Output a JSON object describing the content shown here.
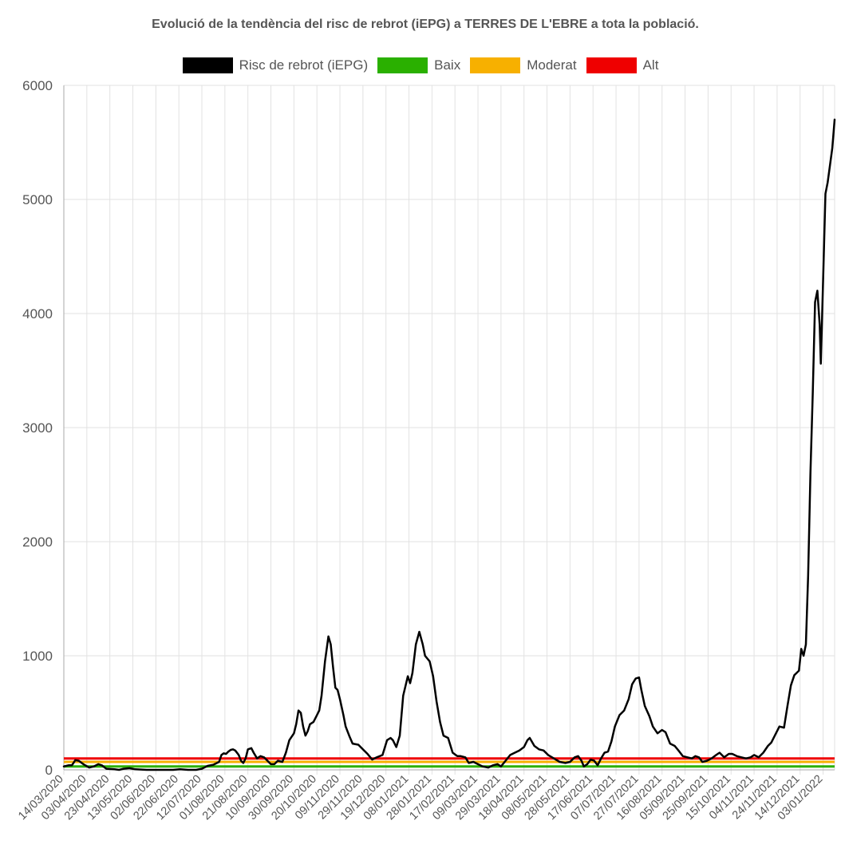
{
  "chart_data": {
    "type": "line",
    "title": "Evolució de la tendència del risc de rebrot (iEPG) a TERRES DE L'EBRE a tota la població.",
    "xlabel": "",
    "ylabel": "",
    "ylim": [
      0,
      6000
    ],
    "y_ticks": [
      "0",
      "1000",
      "2000",
      "3000",
      "4000",
      "5000",
      "6000"
    ],
    "x_start": "2020-03-14",
    "x_end": "2022-01-13",
    "x_tick_labels": [
      "14/03/2020",
      "03/04/2020",
      "23/04/2020",
      "13/05/2020",
      "02/06/2020",
      "22/06/2020",
      "12/07/2020",
      "01/08/2020",
      "21/08/2020",
      "10/09/2020",
      "30/09/2020",
      "20/10/2020",
      "09/11/2020",
      "29/11/2020",
      "19/12/2020",
      "08/01/2021",
      "28/01/2021",
      "17/02/2021",
      "09/03/2021",
      "29/03/2021",
      "18/04/2021",
      "08/05/2021",
      "28/05/2021",
      "17/06/2021",
      "07/07/2021",
      "27/07/2021",
      "16/08/2021",
      "05/09/2021",
      "25/09/2021",
      "15/10/2021",
      "04/11/2021",
      "24/11/2021",
      "14/12/2021",
      "03/01/2022"
    ],
    "grid": true,
    "legend_position": "top",
    "series": [
      {
        "name": "Risc de rebrot (iEPG)",
        "color": "#000000",
        "points": [
          [
            "2020-03-14",
            30
          ],
          [
            "2020-03-18",
            40
          ],
          [
            "2020-03-21",
            40
          ],
          [
            "2020-03-24",
            85
          ],
          [
            "2020-03-27",
            80
          ],
          [
            "2020-03-31",
            50
          ],
          [
            "2020-04-05",
            20
          ],
          [
            "2020-04-09",
            30
          ],
          [
            "2020-04-13",
            50
          ],
          [
            "2020-04-16",
            40
          ],
          [
            "2020-04-20",
            10
          ],
          [
            "2020-04-27",
            5
          ],
          [
            "2020-05-01",
            0
          ],
          [
            "2020-05-05",
            10
          ],
          [
            "2020-05-10",
            15
          ],
          [
            "2020-05-15",
            5
          ],
          [
            "2020-05-25",
            0
          ],
          [
            "2020-06-05",
            0
          ],
          [
            "2020-06-12",
            0
          ],
          [
            "2020-06-17",
            0
          ],
          [
            "2020-06-23",
            5
          ],
          [
            "2020-06-30",
            0
          ],
          [
            "2020-07-07",
            0
          ],
          [
            "2020-07-12",
            10
          ],
          [
            "2020-07-17",
            35
          ],
          [
            "2020-07-22",
            45
          ],
          [
            "2020-07-27",
            70
          ],
          [
            "2020-07-29",
            130
          ],
          [
            "2020-07-31",
            145
          ],
          [
            "2020-08-02",
            140
          ],
          [
            "2020-08-04",
            160
          ],
          [
            "2020-08-06",
            175
          ],
          [
            "2020-08-08",
            180
          ],
          [
            "2020-08-10",
            170
          ],
          [
            "2020-08-13",
            130
          ],
          [
            "2020-08-15",
            80
          ],
          [
            "2020-08-17",
            60
          ],
          [
            "2020-08-19",
            100
          ],
          [
            "2020-08-21",
            180
          ],
          [
            "2020-08-24",
            190
          ],
          [
            "2020-08-26",
            150
          ],
          [
            "2020-08-29",
            100
          ],
          [
            "2020-09-01",
            120
          ],
          [
            "2020-09-04",
            110
          ],
          [
            "2020-09-08",
            70
          ],
          [
            "2020-09-10",
            50
          ],
          [
            "2020-09-13",
            50
          ],
          [
            "2020-09-16",
            80
          ],
          [
            "2020-09-20",
            70
          ],
          [
            "2020-09-23",
            150
          ],
          [
            "2020-09-26",
            260
          ],
          [
            "2020-09-30",
            320
          ],
          [
            "2020-10-02",
            400
          ],
          [
            "2020-10-04",
            520
          ],
          [
            "2020-10-06",
            500
          ],
          [
            "2020-10-08",
            380
          ],
          [
            "2020-10-10",
            300
          ],
          [
            "2020-10-12",
            340
          ],
          [
            "2020-10-14",
            400
          ],
          [
            "2020-10-17",
            420
          ],
          [
            "2020-10-20",
            480
          ],
          [
            "2020-10-22",
            520
          ],
          [
            "2020-10-24",
            650
          ],
          [
            "2020-10-27",
            950
          ],
          [
            "2020-10-30",
            1170
          ],
          [
            "2020-11-01",
            1100
          ],
          [
            "2020-11-03",
            900
          ],
          [
            "2020-11-05",
            720
          ],
          [
            "2020-11-07",
            700
          ],
          [
            "2020-11-09",
            620
          ],
          [
            "2020-11-12",
            480
          ],
          [
            "2020-11-14",
            380
          ],
          [
            "2020-11-17",
            300
          ],
          [
            "2020-11-20",
            230
          ],
          [
            "2020-11-25",
            220
          ],
          [
            "2020-11-30",
            170
          ],
          [
            "2020-12-03",
            140
          ],
          [
            "2020-12-07",
            90
          ],
          [
            "2020-12-11",
            110
          ],
          [
            "2020-12-16",
            130
          ],
          [
            "2020-12-20",
            260
          ],
          [
            "2020-12-23",
            280
          ],
          [
            "2020-12-25",
            260
          ],
          [
            "2020-12-28",
            200
          ],
          [
            "2020-12-31",
            300
          ],
          [
            "2021-01-03",
            650
          ],
          [
            "2021-01-07",
            820
          ],
          [
            "2021-01-09",
            760
          ],
          [
            "2021-01-11",
            850
          ],
          [
            "2021-01-14",
            1100
          ],
          [
            "2021-01-17",
            1210
          ],
          [
            "2021-01-20",
            1100
          ],
          [
            "2021-01-22",
            1000
          ],
          [
            "2021-01-26",
            950
          ],
          [
            "2021-01-29",
            820
          ],
          [
            "2021-02-01",
            600
          ],
          [
            "2021-02-04",
            420
          ],
          [
            "2021-02-07",
            300
          ],
          [
            "2021-02-11",
            280
          ],
          [
            "2021-02-15",
            150
          ],
          [
            "2021-02-19",
            120
          ],
          [
            "2021-02-22",
            120
          ],
          [
            "2021-02-26",
            110
          ],
          [
            "2021-03-01",
            60
          ],
          [
            "2021-03-05",
            70
          ],
          [
            "2021-03-09",
            50
          ],
          [
            "2021-03-13",
            30
          ],
          [
            "2021-03-18",
            20
          ],
          [
            "2021-03-22",
            40
          ],
          [
            "2021-03-26",
            50
          ],
          [
            "2021-03-29",
            30
          ],
          [
            "2021-04-02",
            80
          ],
          [
            "2021-04-06",
            130
          ],
          [
            "2021-04-10",
            150
          ],
          [
            "2021-04-14",
            170
          ],
          [
            "2021-04-18",
            200
          ],
          [
            "2021-04-21",
            260
          ],
          [
            "2021-04-23",
            280
          ],
          [
            "2021-04-27",
            210
          ],
          [
            "2021-05-01",
            180
          ],
          [
            "2021-05-05",
            170
          ],
          [
            "2021-05-09",
            130
          ],
          [
            "2021-05-14",
            100
          ],
          [
            "2021-05-19",
            70
          ],
          [
            "2021-05-24",
            60
          ],
          [
            "2021-05-28",
            70
          ],
          [
            "2021-06-01",
            110
          ],
          [
            "2021-06-04",
            120
          ],
          [
            "2021-06-07",
            80
          ],
          [
            "2021-06-09",
            30
          ],
          [
            "2021-06-12",
            50
          ],
          [
            "2021-06-15",
            90
          ],
          [
            "2021-06-18",
            80
          ],
          [
            "2021-06-21",
            40
          ],
          [
            "2021-06-24",
            100
          ],
          [
            "2021-06-27",
            150
          ],
          [
            "2021-06-30",
            160
          ],
          [
            "2021-07-03",
            250
          ],
          [
            "2021-07-06",
            380
          ],
          [
            "2021-07-10",
            480
          ],
          [
            "2021-07-14",
            520
          ],
          [
            "2021-07-18",
            620
          ],
          [
            "2021-07-21",
            750
          ],
          [
            "2021-07-24",
            800
          ],
          [
            "2021-07-27",
            810
          ],
          [
            "2021-07-29",
            700
          ],
          [
            "2021-08-01",
            560
          ],
          [
            "2021-08-05",
            470
          ],
          [
            "2021-08-08",
            380
          ],
          [
            "2021-08-12",
            320
          ],
          [
            "2021-08-16",
            350
          ],
          [
            "2021-08-19",
            330
          ],
          [
            "2021-08-23",
            230
          ],
          [
            "2021-08-27",
            210
          ],
          [
            "2021-08-31",
            160
          ],
          [
            "2021-09-03",
            120
          ],
          [
            "2021-09-07",
            110
          ],
          [
            "2021-09-11",
            100
          ],
          [
            "2021-09-14",
            120
          ],
          [
            "2021-09-17",
            110
          ],
          [
            "2021-09-20",
            70
          ],
          [
            "2021-09-24",
            80
          ],
          [
            "2021-09-28",
            100
          ],
          [
            "2021-10-02",
            130
          ],
          [
            "2021-10-05",
            150
          ],
          [
            "2021-10-09",
            110
          ],
          [
            "2021-10-13",
            140
          ],
          [
            "2021-10-16",
            140
          ],
          [
            "2021-10-20",
            120
          ],
          [
            "2021-10-24",
            110
          ],
          [
            "2021-10-28",
            100
          ],
          [
            "2021-11-01",
            110
          ],
          [
            "2021-11-04",
            130
          ],
          [
            "2021-11-08",
            110
          ],
          [
            "2021-11-12",
            150
          ],
          [
            "2021-11-16",
            210
          ],
          [
            "2021-11-19",
            240
          ],
          [
            "2021-11-23",
            320
          ],
          [
            "2021-11-26",
            380
          ],
          [
            "2021-11-30",
            370
          ],
          [
            "2021-12-03",
            560
          ],
          [
            "2021-12-06",
            740
          ],
          [
            "2021-12-09",
            830
          ],
          [
            "2021-12-11",
            850
          ],
          [
            "2021-12-13",
            870
          ],
          [
            "2021-12-15",
            1060
          ],
          [
            "2021-12-17",
            1000
          ],
          [
            "2021-12-19",
            1100
          ],
          [
            "2021-12-21",
            1700
          ],
          [
            "2021-12-23",
            2600
          ],
          [
            "2021-12-25",
            3300
          ],
          [
            "2021-12-27",
            4100
          ],
          [
            "2021-12-29",
            4200
          ],
          [
            "2021-12-31",
            3900
          ],
          [
            "2022-01-01",
            3560
          ],
          [
            "2022-01-03",
            4300
          ],
          [
            "2022-01-05",
            5050
          ],
          [
            "2022-01-07",
            5150
          ],
          [
            "2022-01-09",
            5300
          ],
          [
            "2022-01-11",
            5450
          ],
          [
            "2022-01-13",
            5700
          ]
        ]
      },
      {
        "name": "Baix",
        "color": "#2ab000",
        "constant": 30
      },
      {
        "name": "Moderat",
        "color": "#f7b000",
        "constant": 70
      },
      {
        "name": "Alt",
        "color": "#ef0000",
        "constant": 100
      }
    ]
  }
}
